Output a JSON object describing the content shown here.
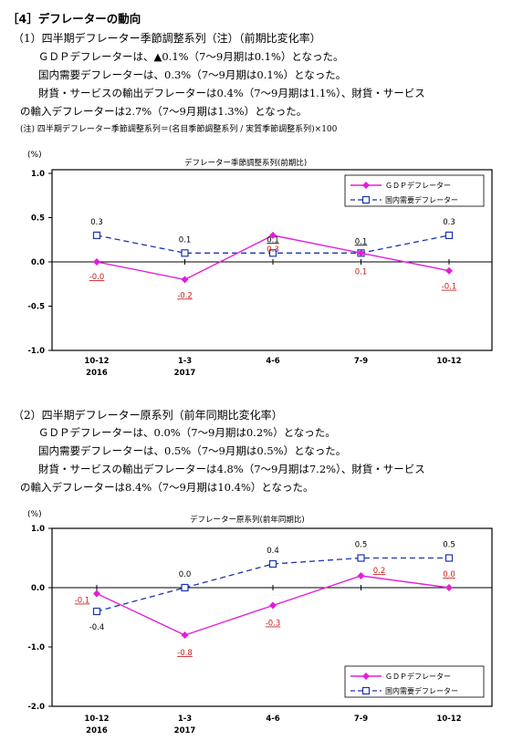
{
  "section_title": "［4］デフレーターの動向",
  "part1": {
    "heading": "（1）四半期デフレーター季節調整系列（注）（前期比変化率）",
    "lines": [
      "ＧＤＰデフレーターは、▲0.1%（7～9月期は0.1%）となった。",
      "国内需要デフレーターは、0.3%（7～9月期は0.1%）となった。",
      "財貨・サービスの輸出デフレーターは0.4%（7～9月期は1.1%）、財貨・サービス",
      "の輸入デフレーターは2.7%（7～9月期は1.3%）となった。"
    ],
    "note": "(注) 四半期デフレーター季節調整系列＝(名目季節調整系列 / 実質季節調整系列)×100"
  },
  "part2": {
    "heading": "（2）四半期デフレーター原系列（前年同期比変化率）",
    "lines": [
      "ＧＤＰデフレーターは、0.0%（7～9月期は0.2%）となった。",
      "国内需要デフレーターは、0.5%（7～9月期は0.5%）となった。",
      "財貨・サービスの輸出デフレーターは4.8%（7～9月期は7.2%）、財貨・サービス",
      "の輸入デフレーターは8.4%（7～9月期は10.4%）となった。"
    ]
  },
  "colors": {
    "gdp": "#e21fd8",
    "domestic": "#1a35b0",
    "gdp_label": "#cc1a1a",
    "axis": "#000000"
  },
  "chart_data": [
    {
      "type": "line",
      "title": "デフレーター季節調整系列(前期比)",
      "unit": "(%)",
      "categories": [
        "10-12",
        "1-3",
        "4-6",
        "7-9",
        "10-12"
      ],
      "year_labels": [
        "2016",
        "2017",
        "",
        "",
        ""
      ],
      "yticks": [
        "1.0",
        "0.5",
        "0.0",
        "-0.5",
        "-1.0"
      ],
      "ylim": [
        -1.0,
        1.0
      ],
      "series": [
        {
          "name": "ＧＤＰデフレーター",
          "values": [
            0.0,
            -0.2,
            0.3,
            0.1,
            -0.1
          ],
          "labels": [
            "-0.0",
            "-0.2",
            "0.3",
            "0.1",
            "-0.1"
          ]
        },
        {
          "name": "国内需要デフレーター",
          "values": [
            0.3,
            0.1,
            0.1,
            0.1,
            0.3
          ],
          "labels": [
            "0.3",
            "0.1",
            "0.1",
            "0.1",
            "0.3"
          ]
        }
      ],
      "legend_position": "top-right"
    },
    {
      "type": "line",
      "title": "デフレーター原系列(前年同期比)",
      "unit": "(%)",
      "categories": [
        "10-12",
        "1-3",
        "4-6",
        "7-9",
        "10-12"
      ],
      "year_labels": [
        "2016",
        "2017",
        "",
        "",
        ""
      ],
      "yticks": [
        "1.0",
        "0.0",
        "-1.0",
        "-2.0"
      ],
      "ylim": [
        -2.0,
        1.0
      ],
      "series": [
        {
          "name": "ＧＤＰデフレーター",
          "values": [
            -0.1,
            -0.8,
            -0.3,
            0.2,
            0.0
          ],
          "labels": [
            "-0.1",
            "-0.8",
            "-0.3",
            "0.2",
            "0.0"
          ]
        },
        {
          "name": "国内需要デフレーター",
          "values": [
            -0.4,
            0.0,
            0.4,
            0.5,
            0.5
          ],
          "labels": [
            "-0.4",
            "0.0",
            "0.4",
            "0.5",
            "0.5"
          ]
        }
      ],
      "legend_position": "bottom-right"
    }
  ]
}
